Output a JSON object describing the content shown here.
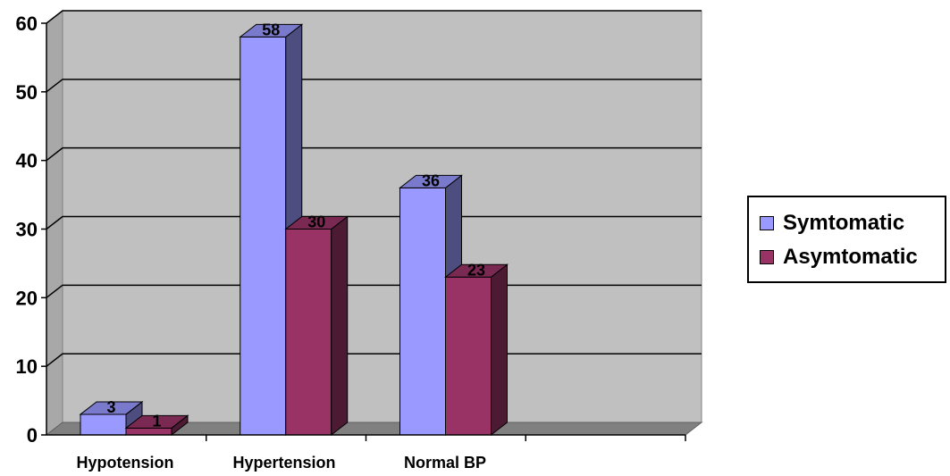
{
  "chart_data": {
    "type": "bar",
    "categories": [
      "Hypotension",
      "Hypertension",
      "Normal BP"
    ],
    "series": [
      {
        "name": "Symtomatic",
        "values": [
          3,
          58,
          36
        ],
        "color": "#9999FF",
        "side_color": "#4D4D80",
        "top_color": "#7A7ACC"
      },
      {
        "name": "Asymtomatic",
        "values": [
          1,
          30,
          23
        ],
        "color": "#993366",
        "side_color": "#4D1A33",
        "top_color": "#7A2952"
      }
    ],
    "title": "",
    "xlabel": "",
    "ylabel": "",
    "ylim": [
      0,
      60
    ],
    "yticks": [
      "0",
      "10",
      "20",
      "30",
      "40",
      "50",
      "60"
    ],
    "grid": true,
    "legend_position": "right",
    "plot_background": "#C0C0C0"
  }
}
